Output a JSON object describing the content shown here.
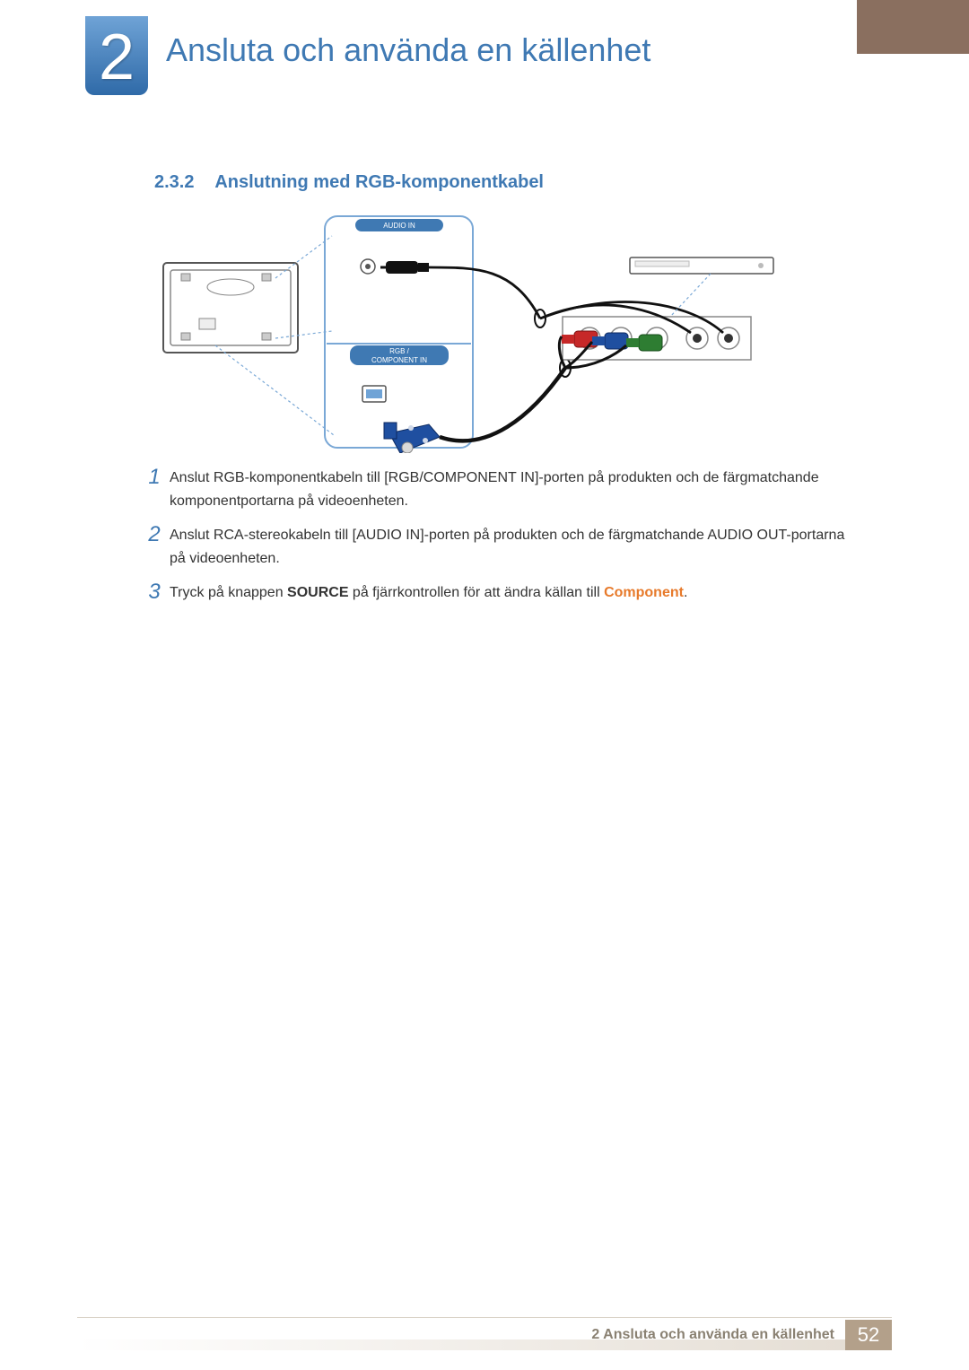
{
  "colors": {
    "brand_blue": "#3f79b3",
    "brand_blue_light": "#6fa3d6",
    "brand_brown": "#8a6f5f",
    "footer_brown": "#b3a08a",
    "footer_text": "#8a8172",
    "highlight_orange": "#e77a2b",
    "body_text": "#333333",
    "rule": "#d9d2c7"
  },
  "chapter": {
    "number": "2",
    "title": "Ansluta och använda en källenhet"
  },
  "section": {
    "number": "2.3.2",
    "title": "Anslutning med RGB-komponentkabel"
  },
  "diagram": {
    "port_labels": {
      "audio_in": "AUDIO IN",
      "rgb_line1": "RGB /",
      "rgb_line2": "COMPONENT IN"
    }
  },
  "steps": [
    {
      "n": "1",
      "runs": [
        {
          "t": "Anslut RGB-komponentkabeln till [RGB/COMPONENT IN]-porten på produkten och de färgmatchande komponentportarna på videoenheten."
        }
      ]
    },
    {
      "n": "2",
      "runs": [
        {
          "t": "Anslut RCA-stereokabeln till [AUDIO IN]-porten på produkten och de färgmatchande AUDIO OUT-portarna på videoenheten."
        }
      ]
    },
    {
      "n": "3",
      "runs": [
        {
          "t": "Tryck på knappen "
        },
        {
          "t": "SOURCE",
          "cls": "bold"
        },
        {
          "t": " på fjärrkontrollen för att ändra källan till "
        },
        {
          "t": "Component",
          "cls": "highlight"
        },
        {
          "t": "."
        }
      ]
    }
  ],
  "footer": {
    "text": "2 Ansluta och använda en källenhet",
    "page": "52"
  }
}
